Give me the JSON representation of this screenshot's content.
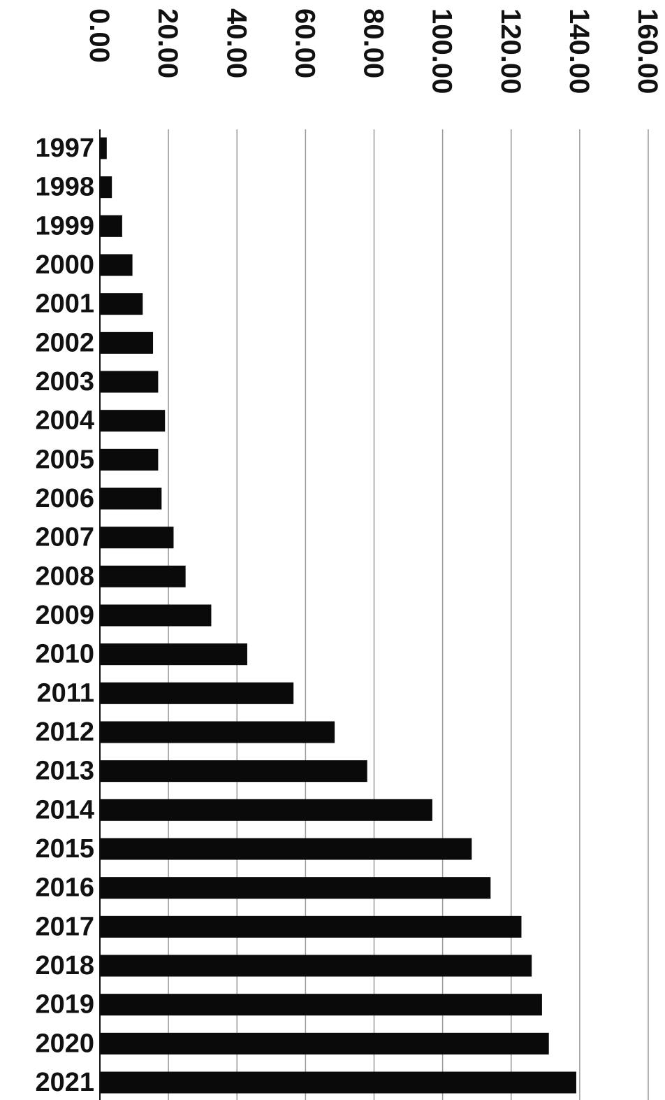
{
  "chart_data": {
    "type": "bar",
    "orientation": "horizontal",
    "title": "",
    "xlabel": "",
    "ylabel": "",
    "xlim": [
      0,
      160
    ],
    "ticks": [
      "0.00",
      "20.00",
      "40.00",
      "60.00",
      "80.00",
      "100.00",
      "120.00",
      "140.00",
      "160.00"
    ],
    "tick_values": [
      0,
      20,
      40,
      60,
      80,
      100,
      120,
      140,
      160
    ],
    "tick_label_rotation": "90deg clockwise",
    "grid": "vertical",
    "bar_color": "#0a0a0a",
    "categories": [
      "1997",
      "1998",
      "1999",
      "2000",
      "2001",
      "2002",
      "2003",
      "2004",
      "2005",
      "2006",
      "2007",
      "2008",
      "2009",
      "2010",
      "2011",
      "2012",
      "2013",
      "2014",
      "2015",
      "2016",
      "2017",
      "2018",
      "2019",
      "2020",
      "2021"
    ],
    "values": [
      2,
      3.5,
      6.5,
      9.5,
      12.5,
      15.5,
      17,
      19,
      17,
      18,
      21.5,
      25,
      32.5,
      43,
      56.5,
      68.5,
      78,
      97,
      108.5,
      114,
      123,
      126,
      129,
      131,
      139
    ]
  }
}
